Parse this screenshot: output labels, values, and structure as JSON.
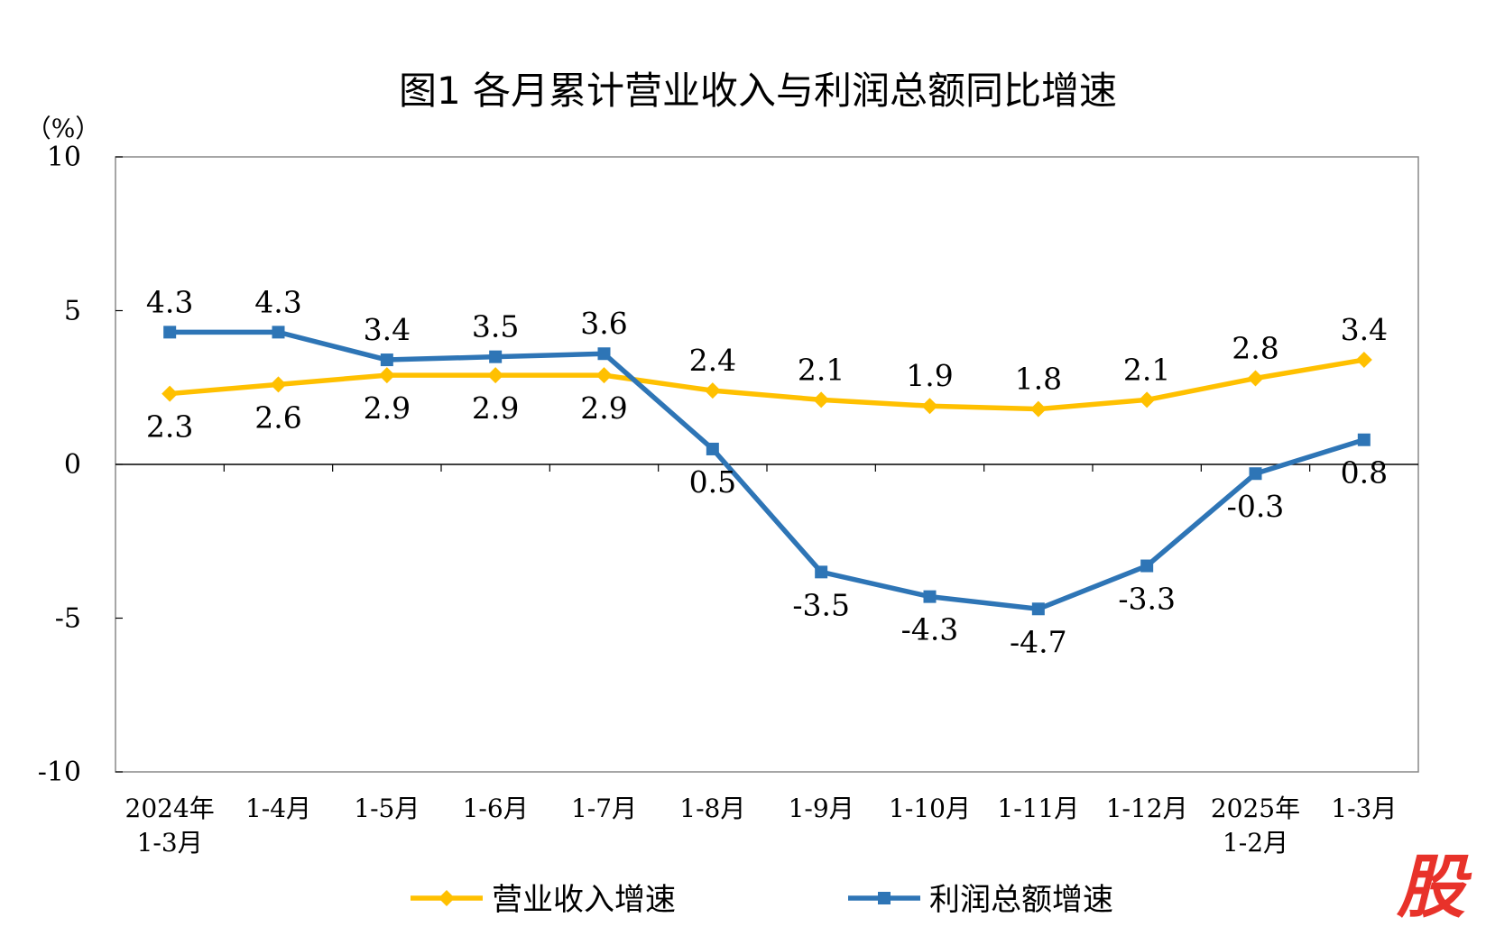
{
  "colors": {
    "revenue": "#FFC000",
    "profit": "#2E75B6",
    "axis": "#000000",
    "watermark": "#E8322A"
  },
  "watermark": {
    "text": "股",
    "icon": "stock-logo"
  },
  "chart_data": {
    "type": "line",
    "title": "图1  各月累计营业收入与利润总额同比增速",
    "unit_label": "（%）",
    "categories": [
      [
        "2024年",
        "1-3月"
      ],
      [
        "1-4月"
      ],
      [
        "1-5月"
      ],
      [
        "1-6月"
      ],
      [
        "1-7月"
      ],
      [
        "1-8月"
      ],
      [
        "1-9月"
      ],
      [
        "1-10月"
      ],
      [
        "1-11月"
      ],
      [
        "1-12月"
      ],
      [
        "2025年",
        "1-2月"
      ],
      [
        "1-3月"
      ]
    ],
    "ylim": [
      -10,
      10
    ],
    "yticks": [
      10,
      5,
      0,
      -5,
      -10
    ],
    "ytick_labels": [
      "10",
      "5",
      "0",
      "-5",
      "-10"
    ],
    "series": [
      {
        "name": "营业收入增速",
        "marker": "diamond",
        "values": [
          2.3,
          2.6,
          2.9,
          2.9,
          2.9,
          2.4,
          2.1,
          1.9,
          1.8,
          2.1,
          2.8,
          3.4
        ],
        "labels": [
          "2.3",
          "2.6",
          "2.9",
          "2.9",
          "2.9",
          "2.4",
          "2.1",
          "1.9",
          "1.8",
          "2.1",
          "2.8",
          "3.4"
        ],
        "label_pos": [
          "below",
          "below",
          "below",
          "below",
          "below",
          "above",
          "above",
          "above",
          "above",
          "above",
          "above",
          "above"
        ]
      },
      {
        "name": "利润总额增速",
        "marker": "square",
        "values": [
          4.3,
          4.3,
          3.4,
          3.5,
          3.6,
          0.5,
          -3.5,
          -4.3,
          -4.7,
          -3.3,
          -0.3,
          0.8
        ],
        "labels": [
          "4.3",
          "4.3",
          "3.4",
          "3.5",
          "3.6",
          "0.5",
          "-3.5",
          "-4.3",
          "-4.7",
          "-3.3",
          "-0.3",
          "0.8"
        ],
        "label_pos": [
          "above",
          "above",
          "above",
          "above",
          "above",
          "below",
          "below",
          "below",
          "below",
          "below",
          "below",
          "below"
        ]
      }
    ],
    "legend": {
      "position": "bottom"
    }
  }
}
